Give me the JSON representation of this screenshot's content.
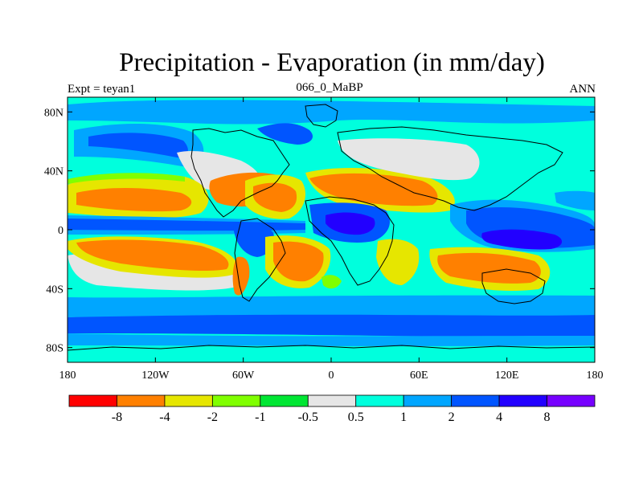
{
  "title": "Precipitation - Evaporation (in mm/day)",
  "subtitle_left": "Expt = teyan1",
  "subtitle_center": "066_0_MaBP",
  "subtitle_right": "ANN",
  "lon_ticks": [
    "180",
    "120W",
    "60W",
    "0",
    "60E",
    "120E",
    "180"
  ],
  "lat_ticks": [
    "80N",
    "40N",
    "0",
    "40S",
    "80S"
  ],
  "lon_tick_values": [
    -180,
    -120,
    -60,
    0,
    60,
    120,
    180
  ],
  "lat_tick_values": [
    80,
    40,
    0,
    -40,
    -80
  ],
  "lon_range": [
    -180,
    180
  ],
  "lat_range": [
    -90,
    90
  ],
  "colorbar": {
    "colors": [
      "#ff0000",
      "#ff8000",
      "#e6e600",
      "#80ff00",
      "#00e633",
      "#e6e6e6",
      "#00ffdd",
      "#00a6ff",
      "#0055ff",
      "#2200ff",
      "#7700ff"
    ],
    "labels": [
      "-8",
      "-4",
      "-2",
      "-1",
      "-0.5",
      "0.5",
      "1",
      "2",
      "4",
      "8"
    ],
    "label_values": [
      -8,
      -4,
      -2,
      -1,
      -0.5,
      0.5,
      1,
      2,
      4,
      8
    ]
  },
  "colors": {
    "background": "#00ffdd",
    "very_wet": "#2200ff",
    "wet": "#0055ff",
    "moist": "#00a6ff",
    "neutral": "#e6e6e6",
    "dry_moderate": "#e6e600",
    "dry": "#ff8000",
    "transition": "#80ff00",
    "coast": "#000000"
  }
}
